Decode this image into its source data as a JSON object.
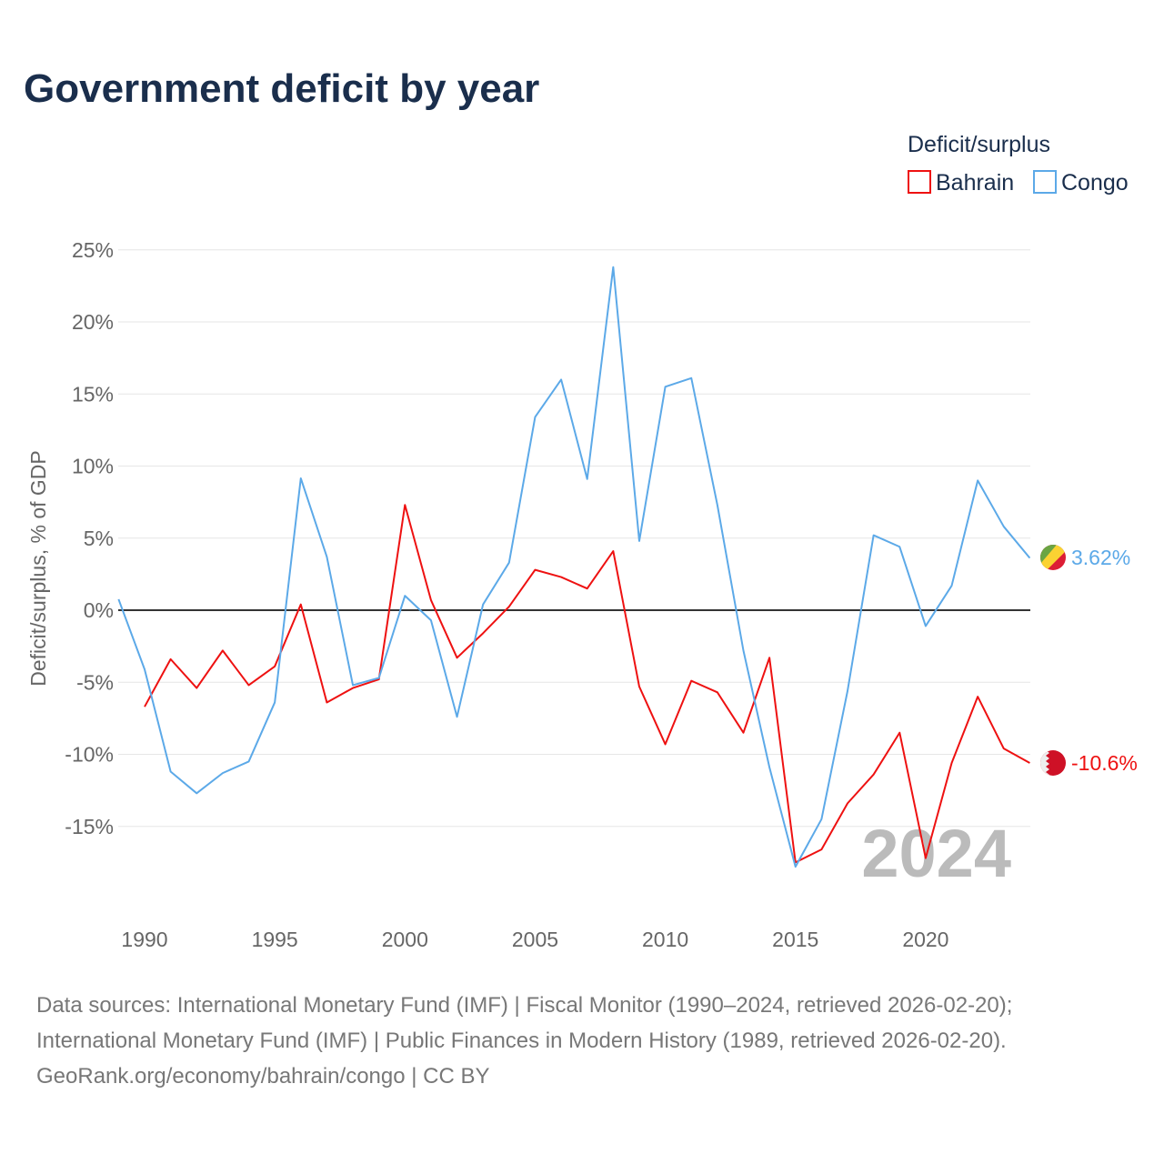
{
  "title": "Government deficit by year",
  "legend": {
    "title": "Deficit/surplus",
    "items": [
      {
        "name": "Bahrain",
        "color": "#ee1111"
      },
      {
        "name": "Congo",
        "color": "#5ca9e8"
      }
    ]
  },
  "year_badge": "2024",
  "footer": [
    "Data sources: International Monetary Fund (IMF) | Fiscal Monitor (1990–2024, retrieved 2026-02-20);",
    "International Monetary Fund (IMF) | Public Finances in Modern History (1989, retrieved 2026-02-20).",
    "GeoRank.org/economy/bahrain/congo | CC BY"
  ],
  "chart_data": {
    "type": "line",
    "title": "Government deficit by year",
    "xlabel": "",
    "ylabel": "Deficit/surplus, % of GDP",
    "xlim": [
      1989,
      2024
    ],
    "ylim": [
      -20,
      25
    ],
    "x_ticks": [
      1990,
      1995,
      2000,
      2005,
      2010,
      2015,
      2020
    ],
    "y_ticks": [
      25,
      20,
      15,
      10,
      5,
      0,
      -5,
      -10,
      -15
    ],
    "y_tick_labels": [
      "25%",
      "20%",
      "15%",
      "10%",
      "5%",
      "0%",
      "-5%",
      "-10%",
      "-15%"
    ],
    "grid": true,
    "legend_position": "top-right",
    "series": [
      {
        "name": "Bahrain",
        "color": "#ee1111",
        "end_label": "-10.6%",
        "start_year": 1990,
        "values": [
          -6.7,
          -3.4,
          -5.4,
          -2.8,
          -5.2,
          -3.9,
          0.4,
          -6.4,
          -5.4,
          -4.8,
          7.3,
          0.7,
          -3.3,
          -1.6,
          0.25,
          2.8,
          2.3,
          1.5,
          4.1,
          -5.3,
          -9.3,
          -4.9,
          -5.7,
          -8.5,
          -3.3,
          -17.5,
          -16.6,
          -13.4,
          -11.4,
          -8.5,
          -17.2,
          -10.6,
          -6.0,
          -9.6,
          -10.6
        ]
      },
      {
        "name": "Congo",
        "color": "#5ca9e8",
        "end_label": "3.62%",
        "start_year": 1989,
        "values": [
          0.76,
          -4.1,
          -11.2,
          -12.7,
          -11.3,
          -10.5,
          -6.4,
          9.15,
          3.7,
          -5.2,
          -4.7,
          1.0,
          -0.7,
          -7.4,
          0.4,
          3.3,
          13.4,
          16.0,
          9.1,
          23.8,
          4.8,
          15.5,
          16.1,
          7.3,
          -2.8,
          -10.9,
          -17.8,
          -14.5,
          -5.6,
          5.2,
          4.4,
          -1.1,
          1.7,
          9.0,
          5.8,
          3.62
        ]
      }
    ]
  }
}
